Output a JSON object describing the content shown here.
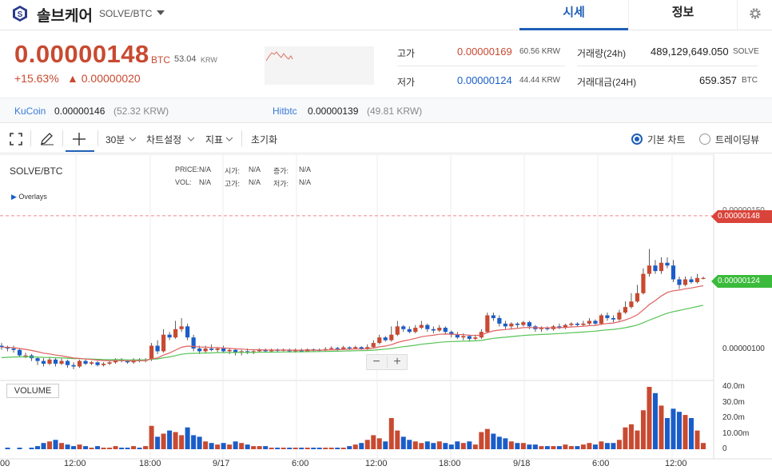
{
  "header": {
    "coin_name": "솔브케어",
    "pair": "SOLVE/BTC",
    "tabs": [
      "시세",
      "정보"
    ]
  },
  "ticker": {
    "price": "0.00000148",
    "price_unit": "BTC",
    "price_krw": "53.04",
    "krw_unit": "KRW",
    "change_pct": "+15.63%",
    "change_abs": "▲ 0.00000020",
    "high_label": "고가",
    "high": "0.00000169",
    "high_krw": "60.56 KRW",
    "low_label": "저가",
    "low": "0.00000124",
    "low_krw": "44.44 KRW",
    "volume_label": "거래량(24h)",
    "volume": "489,129,649.050",
    "volume_unit": "SOLVE",
    "amount_label": "거래대금(24H)",
    "amount": "659.357",
    "amount_unit": "BTC"
  },
  "exchanges": [
    {
      "name": "KuCoin",
      "price": "0.00000146",
      "krw": "(52.32 KRW)"
    },
    {
      "name": "Hitbtc",
      "price": "0.00000139",
      "krw": "(49.81 KRW)"
    }
  ],
  "toolbar": {
    "interval": "30분",
    "chart_settings": "차트설정",
    "indicators": "지표",
    "reset": "초기화",
    "basic_chart": "기본 차트",
    "tradingview": "트레이딩뷰"
  },
  "chart": {
    "symbol": "SOLVE/BTC",
    "overlays": "Overlays",
    "price_label": "PRICE:",
    "vol_label": "VOL:",
    "na": "N/A",
    "open_label": "시가:",
    "high_label": "고가:",
    "change_label": "증가:",
    "low_label": "저가:",
    "volume_btn": "VOLUME",
    "price_axis": [
      "0.00000150",
      "0.00000100"
    ],
    "volume_axis": [
      "40.0m",
      "30.0m",
      "20.0m",
      "10.00m",
      "0"
    ],
    "last_price_tag": "0.00000148",
    "ma_tag": "0.00000124",
    "time_labels": [
      "00",
      "12:00",
      "18:00",
      "9/17",
      "6:00",
      "12:00",
      "18:00",
      "9/18",
      "6:00",
      "12:00"
    ],
    "colors": {
      "up": "#c84a31",
      "down": "#1a5dc9",
      "ma_fast": "#e06060",
      "ma_slow": "#55c455"
    }
  },
  "chart_data": {
    "type": "candlestick",
    "series": [
      {
        "name": "SOLVE/BTC",
        "values": [
          [
            1.01,
            1.005,
            1.02,
            0.995,
            0
          ],
          [
            1.005,
            1.0,
            1.01,
            0.99,
            1
          ],
          [
            1.0,
            0.995,
            1.01,
            0.985,
            0
          ],
          [
            0.995,
            0.975,
            1.0,
            0.97,
            1
          ],
          [
            0.975,
            0.975,
            0.985,
            0.965,
            0
          ],
          [
            0.975,
            0.965,
            0.98,
            0.955,
            1
          ],
          [
            0.965,
            0.955,
            0.97,
            0.94,
            2
          ],
          [
            0.955,
            0.945,
            0.965,
            0.935,
            4
          ],
          [
            0.945,
            0.96,
            0.97,
            0.94,
            5
          ],
          [
            0.96,
            0.945,
            0.965,
            0.935,
            6
          ],
          [
            0.945,
            0.955,
            0.965,
            0.94,
            4
          ],
          [
            0.955,
            0.94,
            0.96,
            0.93,
            3
          ],
          [
            0.94,
            0.935,
            0.95,
            0.925,
            2
          ],
          [
            0.935,
            0.955,
            0.96,
            0.93,
            3
          ],
          [
            0.955,
            0.945,
            0.96,
            0.94,
            2
          ],
          [
            0.945,
            0.95,
            0.955,
            0.94,
            1
          ],
          [
            0.95,
            0.94,
            0.955,
            0.935,
            2
          ],
          [
            0.94,
            0.945,
            0.95,
            0.935,
            1
          ],
          [
            0.945,
            0.95,
            0.955,
            0.94,
            1
          ],
          [
            0.95,
            0.96,
            0.965,
            0.945,
            2
          ],
          [
            0.96,
            0.955,
            0.965,
            0.95,
            1
          ],
          [
            0.955,
            0.95,
            0.96,
            0.945,
            1
          ],
          [
            0.95,
            0.96,
            0.965,
            0.945,
            2
          ],
          [
            0.96,
            0.955,
            0.965,
            0.95,
            1
          ],
          [
            0.955,
            0.96,
            0.965,
            0.95,
            2
          ],
          [
            0.96,
            1.01,
            1.02,
            0.955,
            15
          ],
          [
            1.01,
            0.99,
            1.03,
            0.98,
            8
          ],
          [
            0.99,
            1.05,
            1.07,
            0.985,
            10
          ],
          [
            1.05,
            1.04,
            1.06,
            1.03,
            12
          ],
          [
            1.04,
            1.07,
            1.1,
            1.035,
            11
          ],
          [
            1.07,
            1.08,
            1.11,
            1.06,
            9
          ],
          [
            1.08,
            1.04,
            1.09,
            1.03,
            14
          ],
          [
            1.04,
            1.0,
            1.05,
            0.99,
            9
          ],
          [
            1.0,
            0.99,
            1.01,
            0.98,
            8
          ],
          [
            0.99,
            1.0,
            1.01,
            0.985,
            5
          ],
          [
            1.0,
            0.995,
            1.015,
            0.99,
            4
          ],
          [
            0.995,
            1.0,
            1.005,
            0.985,
            3
          ],
          [
            1.0,
            0.99,
            1.01,
            0.985,
            4
          ],
          [
            0.99,
            0.995,
            1.0,
            0.98,
            3
          ],
          [
            0.995,
            0.985,
            1.0,
            0.975,
            5
          ],
          [
            0.985,
            0.99,
            0.995,
            0.975,
            4
          ],
          [
            0.99,
            0.985,
            1.0,
            0.98,
            3
          ],
          [
            0.985,
            0.99,
            0.995,
            0.98,
            2
          ],
          [
            0.99,
            0.995,
            1.0,
            0.985,
            2
          ],
          [
            0.995,
            0.99,
            1.0,
            0.985,
            2
          ],
          [
            0.99,
            0.995,
            1.0,
            0.985,
            1
          ],
          [
            0.995,
            0.992,
            1.0,
            0.988,
            1
          ],
          [
            0.992,
            0.995,
            1.0,
            0.99,
            1
          ],
          [
            0.995,
            0.99,
            1.0,
            0.985,
            1
          ],
          [
            0.99,
            0.995,
            1.0,
            0.985,
            1
          ],
          [
            0.995,
            0.99,
            1.0,
            0.988,
            1
          ],
          [
            0.99,
            0.997,
            1.0,
            0.988,
            1
          ],
          [
            0.997,
            0.995,
            1.0,
            0.99,
            1
          ],
          [
            0.995,
            0.993,
            1.0,
            0.99,
            1
          ],
          [
            0.993,
            0.998,
            1.005,
            0.99,
            1
          ],
          [
            0.998,
            1.002,
            1.008,
            0.995,
            1
          ],
          [
            1.002,
            0.998,
            1.006,
            0.992,
            1
          ],
          [
            0.998,
            1.004,
            1.01,
            0.995,
            1
          ],
          [
            1.004,
            1.0,
            1.008,
            0.995,
            2
          ],
          [
            1.0,
            1.005,
            1.01,
            0.998,
            3
          ],
          [
            1.005,
            0.998,
            1.008,
            0.995,
            4
          ],
          [
            0.998,
            1.005,
            1.015,
            0.995,
            6
          ],
          [
            1.005,
            1.02,
            1.03,
            1.0,
            9
          ],
          [
            1.02,
            1.04,
            1.05,
            1.015,
            7
          ],
          [
            1.04,
            1.03,
            1.045,
            1.025,
            5
          ],
          [
            1.03,
            1.05,
            1.08,
            1.025,
            20
          ],
          [
            1.05,
            1.08,
            1.1,
            1.045,
            12
          ],
          [
            1.08,
            1.07,
            1.085,
            1.06,
            8
          ],
          [
            1.07,
            1.06,
            1.08,
            1.055,
            6
          ],
          [
            1.06,
            1.075,
            1.085,
            1.055,
            5
          ],
          [
            1.075,
            1.085,
            1.1,
            1.07,
            4
          ],
          [
            1.085,
            1.07,
            1.09,
            1.06,
            5
          ],
          [
            1.07,
            1.065,
            1.08,
            1.055,
            4
          ],
          [
            1.065,
            1.075,
            1.085,
            1.06,
            5
          ],
          [
            1.075,
            1.06,
            1.08,
            1.05,
            4
          ],
          [
            1.06,
            1.05,
            1.065,
            1.04,
            3
          ],
          [
            1.05,
            1.04,
            1.06,
            1.035,
            5
          ],
          [
            1.04,
            1.045,
            1.055,
            1.03,
            4
          ],
          [
            1.045,
            1.035,
            1.05,
            1.025,
            5
          ],
          [
            1.035,
            1.04,
            1.05,
            1.03,
            3
          ],
          [
            1.04,
            1.06,
            1.07,
            1.035,
            11
          ],
          [
            1.06,
            1.12,
            1.13,
            1.055,
            13
          ],
          [
            1.12,
            1.11,
            1.13,
            1.1,
            10
          ],
          [
            1.11,
            1.09,
            1.12,
            1.08,
            8
          ],
          [
            1.09,
            1.08,
            1.1,
            1.07,
            7
          ],
          [
            1.08,
            1.09,
            1.095,
            1.07,
            5
          ],
          [
            1.09,
            1.085,
            1.095,
            1.075,
            4
          ],
          [
            1.085,
            1.095,
            1.1,
            1.08,
            4
          ],
          [
            1.095,
            1.08,
            1.1,
            1.07,
            3
          ],
          [
            1.08,
            1.07,
            1.085,
            1.06,
            3
          ],
          [
            1.07,
            1.075,
            1.08,
            1.06,
            2
          ],
          [
            1.075,
            1.07,
            1.08,
            1.065,
            2
          ],
          [
            1.07,
            1.08,
            1.085,
            1.065,
            2
          ],
          [
            1.08,
            1.075,
            1.09,
            1.07,
            2
          ],
          [
            1.075,
            1.085,
            1.09,
            1.07,
            3
          ],
          [
            1.085,
            1.09,
            1.095,
            1.08,
            2
          ],
          [
            1.09,
            1.085,
            1.095,
            1.08,
            2
          ],
          [
            1.085,
            1.09,
            1.1,
            1.08,
            3
          ],
          [
            1.09,
            1.1,
            1.11,
            1.085,
            4
          ],
          [
            1.1,
            1.09,
            1.105,
            1.085,
            3
          ],
          [
            1.09,
            1.12,
            1.125,
            1.085,
            5
          ],
          [
            1.12,
            1.11,
            1.13,
            1.1,
            4
          ],
          [
            1.11,
            1.105,
            1.12,
            1.095,
            4
          ],
          [
            1.105,
            1.13,
            1.14,
            1.1,
            6
          ],
          [
            1.13,
            1.15,
            1.17,
            1.125,
            14
          ],
          [
            1.15,
            1.17,
            1.2,
            1.145,
            16
          ],
          [
            1.17,
            1.2,
            1.23,
            1.165,
            12
          ],
          [
            1.2,
            1.27,
            1.29,
            1.195,
            25
          ],
          [
            1.27,
            1.3,
            1.36,
            1.26,
            40
          ],
          [
            1.3,
            1.28,
            1.32,
            1.27,
            36
          ],
          [
            1.28,
            1.31,
            1.33,
            1.27,
            28
          ],
          [
            1.31,
            1.3,
            1.33,
            1.29,
            20
          ],
          [
            1.3,
            1.25,
            1.32,
            1.24,
            26
          ],
          [
            1.25,
            1.23,
            1.26,
            1.215,
            24
          ],
          [
            1.23,
            1.25,
            1.26,
            1.225,
            22
          ],
          [
            1.25,
            1.24,
            1.26,
            1.235,
            20
          ],
          [
            1.24,
            1.255,
            1.27,
            1.235,
            12
          ],
          [
            1.255,
            1.255,
            1.26,
            1.25,
            4
          ]
        ]
      }
    ],
    "value_format": "[open, close, high, low, volume_m] in units of 0.000001 BTC, volume in millions",
    "x_labels": [
      "00",
      "12:00",
      "18:00",
      "9/17",
      "6:00",
      "12:00",
      "18:00",
      "9/18",
      "6:00",
      "12:00"
    ],
    "y_labels": [
      "0.00000150",
      "0.00000100"
    ],
    "volume_labels": [
      "40.0m",
      "30.0m",
      "20.0m",
      "10.00m",
      "0"
    ]
  }
}
